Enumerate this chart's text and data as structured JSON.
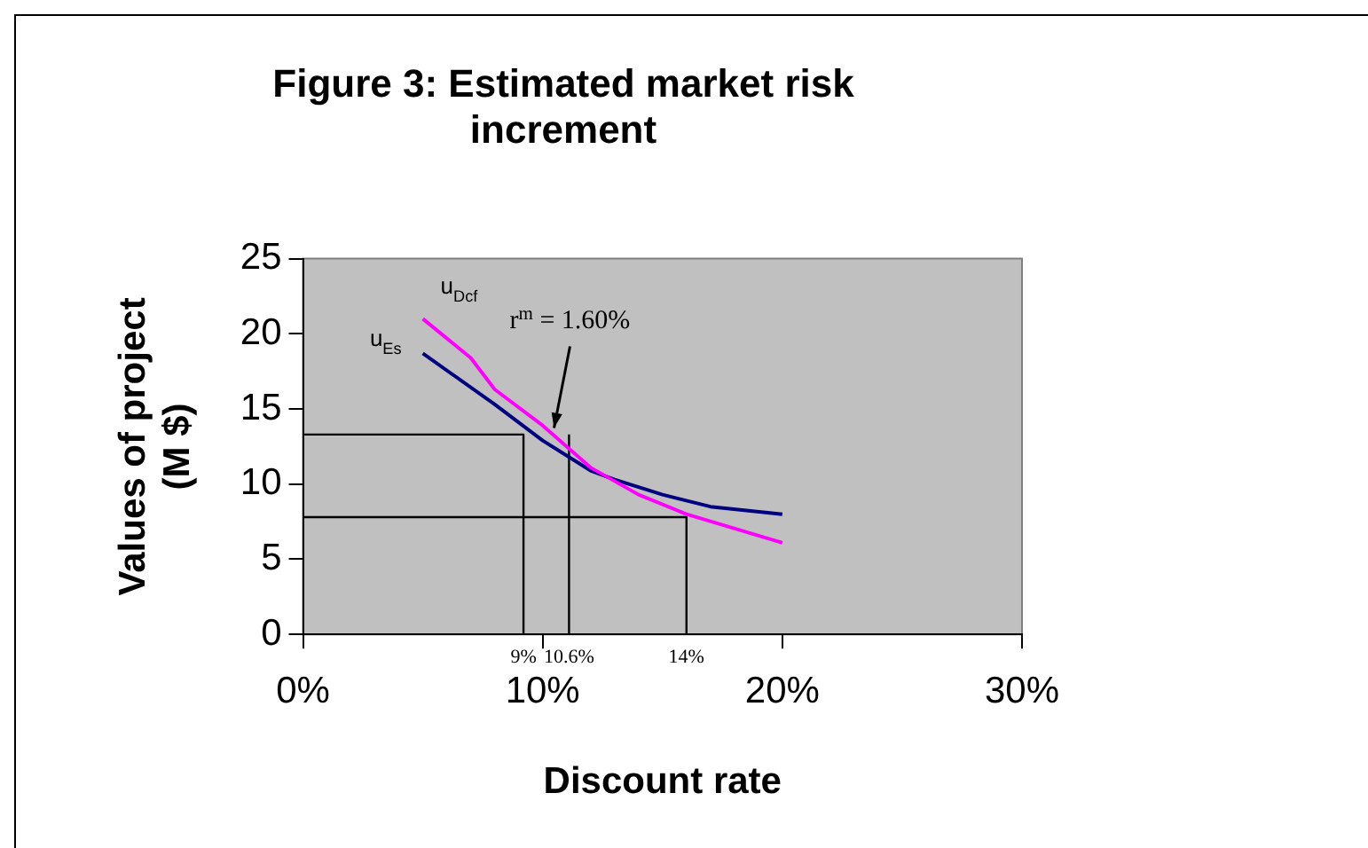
{
  "chart_data": {
    "type": "line",
    "title": "Figure 3: Estimated market risk increment",
    "xlabel": "Discount rate",
    "ylabel": "Values of project (M $)",
    "xlim": [
      0,
      30
    ],
    "xticks": [
      {
        "value": 0,
        "label": "0%"
      },
      {
        "value": 10,
        "label": "10%"
      },
      {
        "value": 20,
        "label": "20%"
      },
      {
        "value": 30,
        "label": "30%"
      }
    ],
    "ylim": [
      0,
      25
    ],
    "yticks": [
      0,
      5,
      10,
      15,
      20,
      25
    ],
    "grid": false,
    "legend": false,
    "marker": "none",
    "line_style": "solid",
    "series": [
      {
        "name": "u$_{Dcf}$",
        "color": "#ff00ff",
        "x": [
          5,
          7,
          8,
          10,
          12,
          13,
          14,
          16,
          20
        ],
        "values": [
          21.0,
          18.4,
          16.3,
          13.9,
          11.1,
          10.2,
          9.3,
          8.0,
          6.1
        ]
      },
      {
        "name": "u$_{Es}$",
        "color": "#000080",
        "x": [
          5,
          8,
          10,
          12,
          13,
          15,
          17,
          20
        ],
        "values": [
          18.7,
          15.3,
          12.9,
          10.9,
          10.3,
          9.3,
          8.5,
          8.0
        ]
      },
      {
        "color": "#000000",
        "x": [
          0,
          9.2,
          9.2
        ],
        "values": [
          13.3,
          13.3,
          0
        ]
      },
      {
        "color": "#000000",
        "x": [
          11.1,
          11.1
        ],
        "values": [
          0,
          13.3
        ]
      },
      {
        "color": "#000000",
        "x": [
          0,
          16.0,
          16.0
        ],
        "values": [
          7.8,
          7.8,
          0
        ]
      }
    ],
    "annotations": [
      {
        "text": "r$^{m}$ = 1.60%",
        "x": 10.4,
        "y": 13.5
      },
      "9%",
      "10.6%",
      "14%"
    ]
  }
}
